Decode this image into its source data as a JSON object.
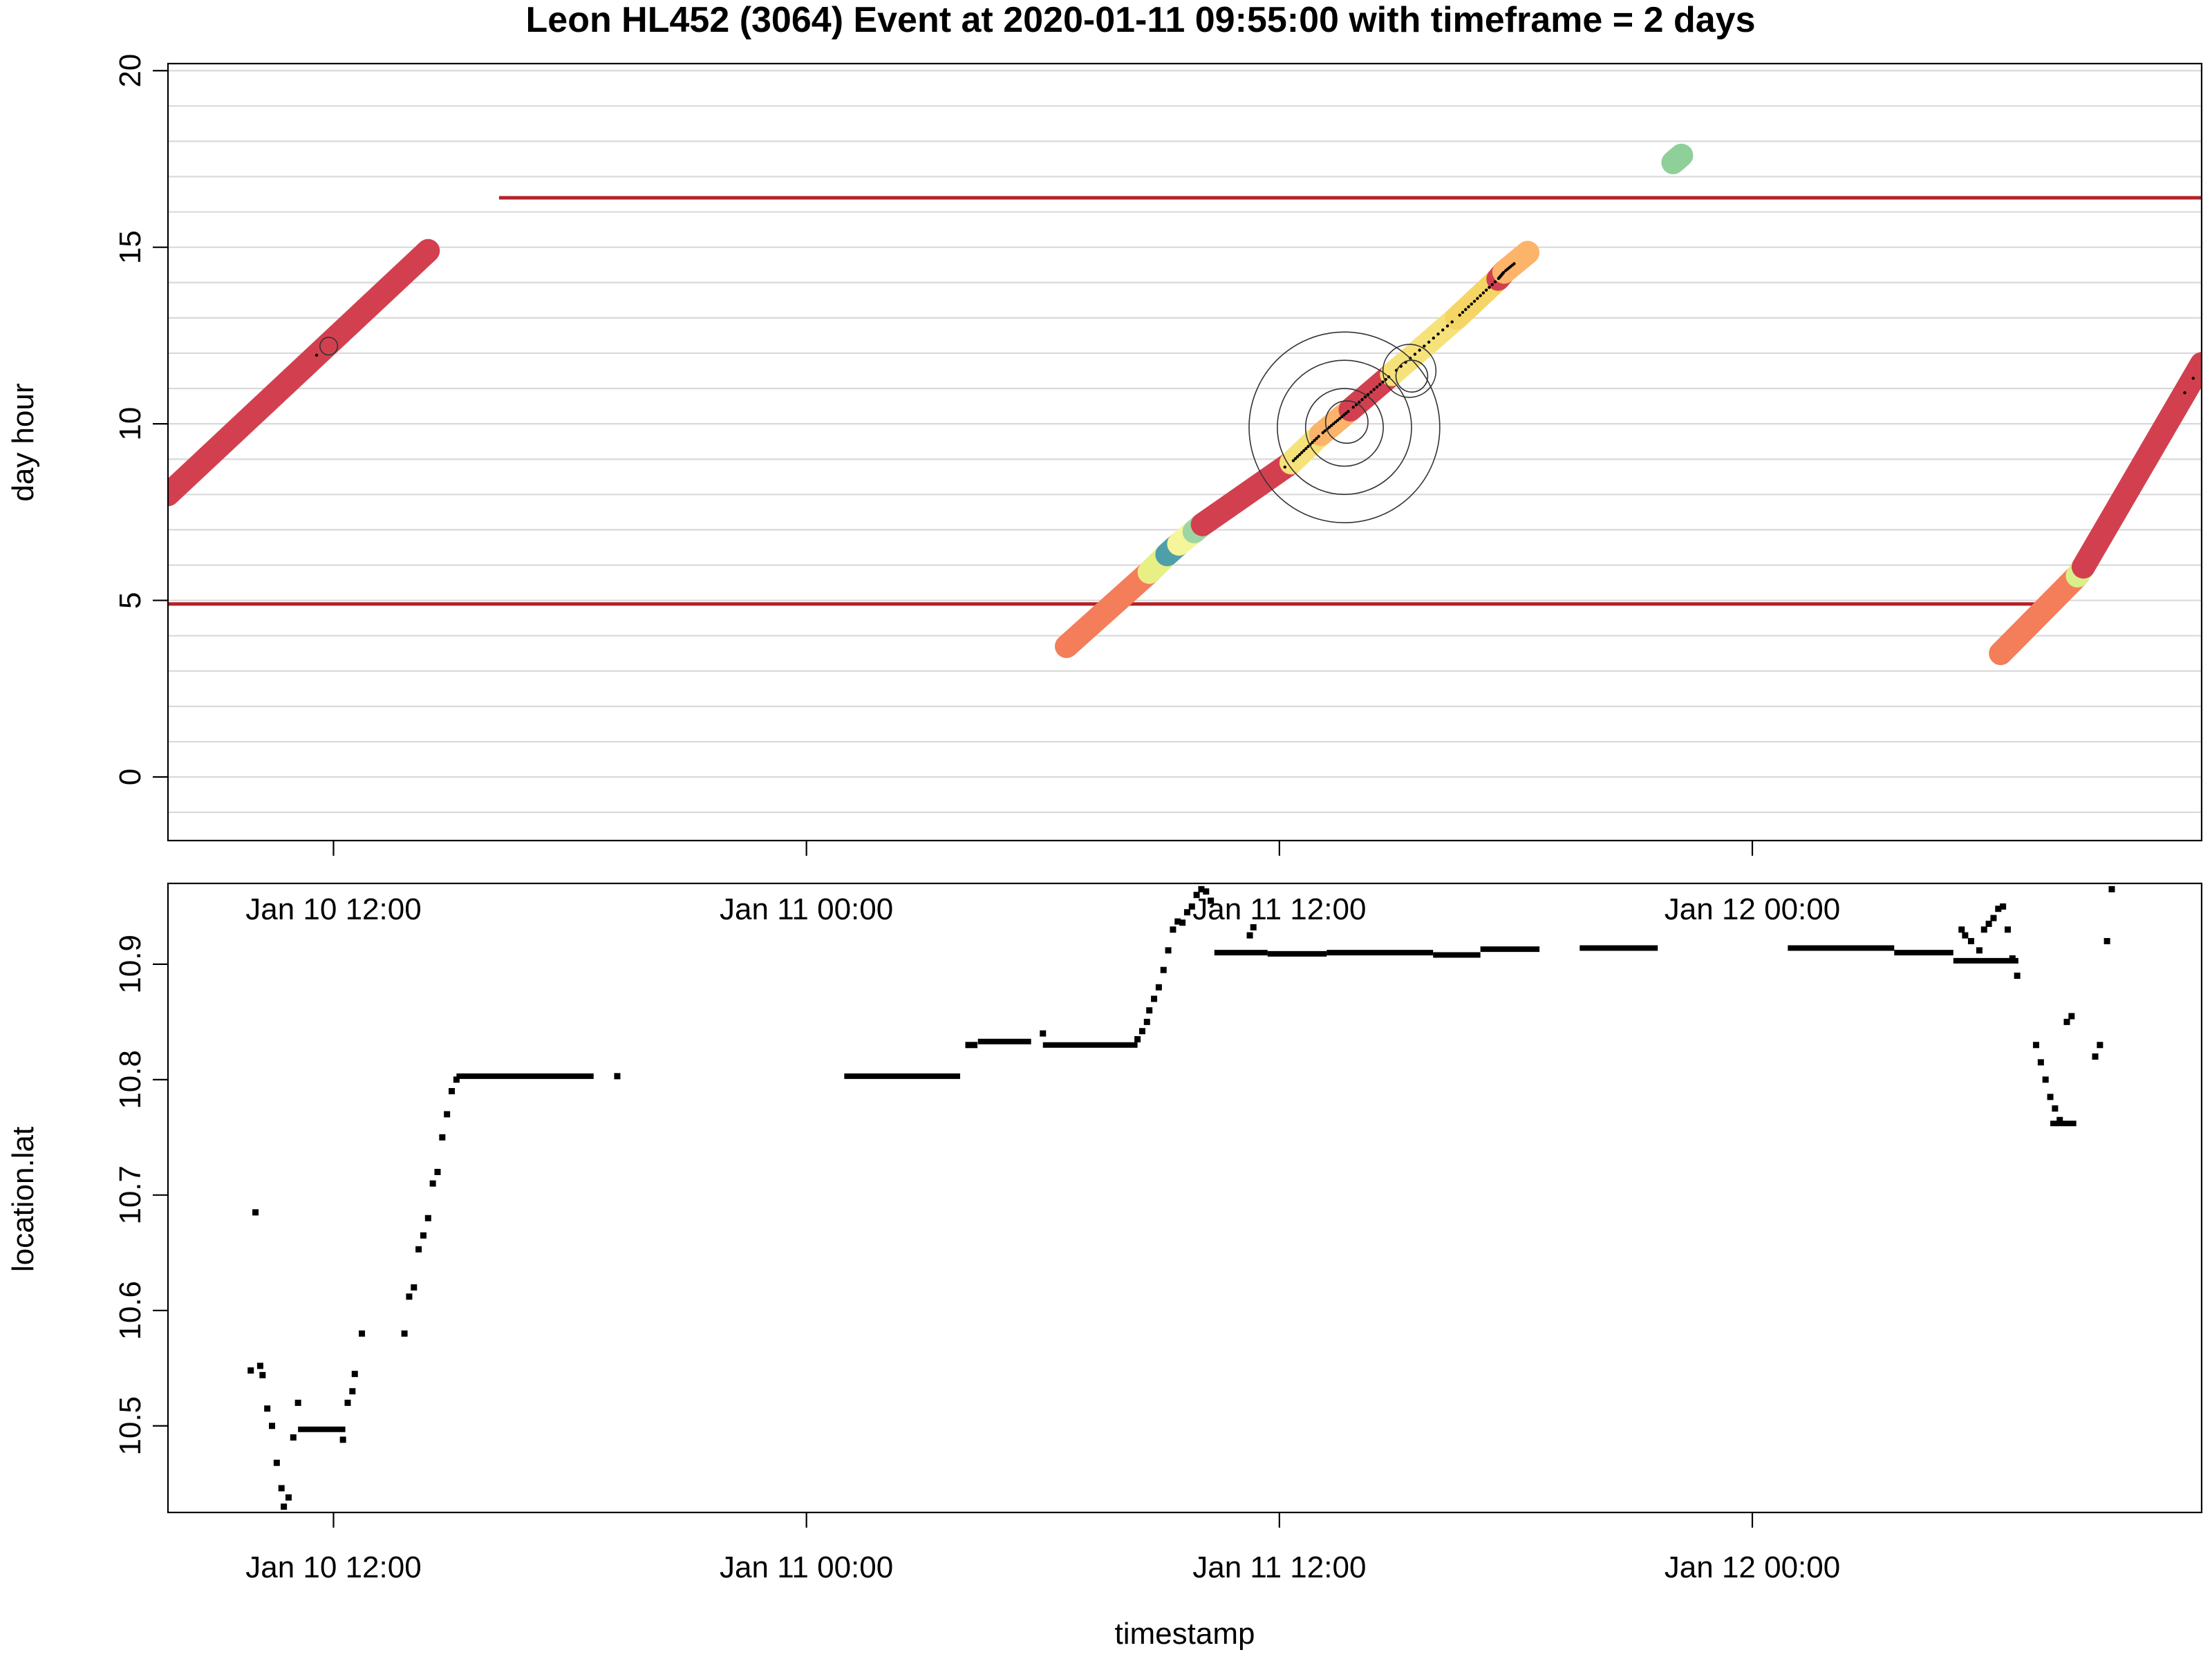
{
  "chart_data": [
    {
      "type": "scatter",
      "title": "Leon HL452 (3064)  Event at  2020-01-11 09:55:00  with timeframe =  2  days",
      "xlabel": "",
      "ylabel": "day hour",
      "xlim": [
        5.86,
        7.58
      ],
      "ylim": [
        -1.8,
        20.2
      ],
      "yticks": [
        "0",
        "5",
        "10",
        "15",
        "20"
      ],
      "ytick_values": [
        0,
        5,
        10,
        15,
        20
      ],
      "minor_grid_step": 1,
      "grid": true,
      "hlines": [
        {
          "y": 16.4,
          "x_start": 6.14,
          "x_end": 7.58,
          "color": "#b2222a"
        },
        {
          "y": 4.9,
          "x_start": 5.86,
          "x_end": 7.45,
          "color": "#b2222a"
        }
      ],
      "series": [
        {
          "color": "#d2404f",
          "x_start": 5.86,
          "y_start": 8.0,
          "x_end": 6.08,
          "y_end": 14.9
        },
        {
          "color": "#f47d5a",
          "x_start": 6.62,
          "y_start": 3.7,
          "x_end": 6.69,
          "y_end": 5.8
        },
        {
          "color": "#e7ef85",
          "x_start": 6.69,
          "y_start": 5.8,
          "x_end": 6.705,
          "y_end": 6.3
        },
        {
          "color": "#4f9fa8",
          "x_start": 6.705,
          "y_start": 6.3,
          "x_end": 6.715,
          "y_end": 6.6
        },
        {
          "color": "#f6f59b",
          "x_start": 6.715,
          "y_start": 6.6,
          "x_end": 6.728,
          "y_end": 6.95
        },
        {
          "color": "#9ed6a3",
          "x_start": 6.728,
          "y_start": 6.95,
          "x_end": 6.735,
          "y_end": 7.15
        },
        {
          "color": "#d2404f",
          "x_start": 6.735,
          "y_start": 7.15,
          "x_end": 6.81,
          "y_end": 8.9
        },
        {
          "color": "#f6e27a",
          "x_start": 6.81,
          "y_start": 8.9,
          "x_end": 6.835,
          "y_end": 9.7
        },
        {
          "color": "#fbb46a",
          "x_start": 6.835,
          "y_start": 9.7,
          "x_end": 6.86,
          "y_end": 10.4
        },
        {
          "color": "#d2404f",
          "x_start": 6.86,
          "y_start": 10.4,
          "x_end": 6.895,
          "y_end": 11.4
        },
        {
          "color": "#f6e27a",
          "x_start": 6.895,
          "y_start": 11.4,
          "x_end": 6.95,
          "y_end": 13.0
        },
        {
          "color": "#f5d565",
          "x_start": 6.95,
          "y_start": 13.0,
          "x_end": 6.985,
          "y_end": 14.1
        },
        {
          "color": "#d2404f",
          "x_start": 6.985,
          "y_start": 14.1,
          "x_end": 6.99,
          "y_end": 14.3
        },
        {
          "color": "#fbb46a",
          "x_start": 6.99,
          "y_start": 14.3,
          "x_end": 7.01,
          "y_end": 14.85
        },
        {
          "color": "#8fcf98",
          "x_start": 7.133,
          "y_start": 17.4,
          "x_end": 7.14,
          "y_end": 17.6
        },
        {
          "color": "#f47d5a",
          "x_start": 7.41,
          "y_start": 3.5,
          "x_end": 7.475,
          "y_end": 5.7
        },
        {
          "color": "#d9ef8b",
          "x_start": 7.475,
          "y_start": 5.7,
          "x_end": 7.48,
          "y_end": 5.95
        },
        {
          "color": "#d2404f",
          "x_start": 7.48,
          "y_start": 5.95,
          "x_end": 7.58,
          "y_end": 11.7
        }
      ],
      "rings": [
        {
          "x": 6.855,
          "y": 9.9,
          "r": 2.7
        },
        {
          "x": 6.855,
          "y": 9.9,
          "r": 1.9
        },
        {
          "x": 6.855,
          "y": 9.9,
          "r": 1.1
        },
        {
          "x": 6.857,
          "y": 10.05,
          "r": 0.6
        },
        {
          "x": 6.91,
          "y": 11.5,
          "r": 0.75
        },
        {
          "x": 6.912,
          "y": 11.35,
          "r": 0.45
        },
        {
          "x": 5.996,
          "y": 12.2,
          "r": 0.25
        }
      ]
    },
    {
      "type": "scatter",
      "xlabel": "timestamp",
      "ylabel": "location.lat",
      "xlim": [
        5.86,
        7.58
      ],
      "ylim": [
        10.425,
        10.97
      ],
      "yticks": [
        "10.5",
        "10.6",
        "10.7",
        "10.8",
        "10.9"
      ],
      "ytick_values": [
        10.5,
        10.6,
        10.7,
        10.8,
        10.9
      ],
      "xticks": [
        "Jan 10 12:00",
        "Jan 11 00:00",
        "Jan 11 12:00",
        "Jan 12 00:00"
      ],
      "xtick_values": [
        6.0,
        6.4,
        6.8,
        7.2
      ],
      "points": [
        [
          5.93,
          10.548
        ],
        [
          5.934,
          10.685
        ],
        [
          5.938,
          10.552
        ],
        [
          5.94,
          10.544
        ],
        [
          5.944,
          10.515
        ],
        [
          5.948,
          10.5
        ],
        [
          5.952,
          10.468
        ],
        [
          5.956,
          10.446
        ],
        [
          5.958,
          10.43
        ],
        [
          5.962,
          10.438
        ],
        [
          5.966,
          10.49
        ],
        [
          5.97,
          10.52
        ],
        [
          6.008,
          10.488
        ],
        [
          6.012,
          10.52
        ],
        [
          6.016,
          10.53
        ],
        [
          6.018,
          10.545
        ],
        [
          6.024,
          10.58
        ],
        [
          6.06,
          10.58
        ],
        [
          6.064,
          10.612
        ],
        [
          6.068,
          10.62
        ],
        [
          6.072,
          10.653
        ],
        [
          6.076,
          10.665
        ],
        [
          6.08,
          10.68
        ],
        [
          6.084,
          10.71
        ],
        [
          6.088,
          10.72
        ],
        [
          6.092,
          10.75
        ],
        [
          6.096,
          10.77
        ],
        [
          6.1,
          10.79
        ],
        [
          6.104,
          10.8
        ],
        [
          6.24,
          10.803
        ],
        [
          6.537,
          10.83
        ],
        [
          6.542,
          10.83
        ],
        [
          6.6,
          10.84
        ],
        [
          6.68,
          10.835
        ],
        [
          6.684,
          10.842
        ],
        [
          6.688,
          10.85
        ],
        [
          6.69,
          10.86
        ],
        [
          6.694,
          10.87
        ],
        [
          6.698,
          10.88
        ],
        [
          6.702,
          10.895
        ],
        [
          6.706,
          10.912
        ],
        [
          6.71,
          10.93
        ],
        [
          6.714,
          10.937
        ],
        [
          6.718,
          10.936
        ],
        [
          6.722,
          10.945
        ],
        [
          6.726,
          10.95
        ],
        [
          6.73,
          10.96
        ],
        [
          6.734,
          10.965
        ],
        [
          6.738,
          10.963
        ],
        [
          6.742,
          10.955
        ],
        [
          6.775,
          10.925
        ],
        [
          6.778,
          10.932
        ],
        [
          7.377,
          10.93
        ],
        [
          7.38,
          10.925
        ],
        [
          7.385,
          10.92
        ],
        [
          7.392,
          10.912
        ],
        [
          7.396,
          10.93
        ],
        [
          7.4,
          10.935
        ],
        [
          7.404,
          10.94
        ],
        [
          7.408,
          10.948
        ],
        [
          7.412,
          10.95
        ],
        [
          7.416,
          10.93
        ],
        [
          7.42,
          10.905
        ],
        [
          7.424,
          10.89
        ],
        [
          7.44,
          10.83
        ],
        [
          7.444,
          10.815
        ],
        [
          7.448,
          10.8
        ],
        [
          7.452,
          10.785
        ],
        [
          7.456,
          10.775
        ],
        [
          7.46,
          10.765
        ],
        [
          7.466,
          10.85
        ],
        [
          7.47,
          10.855
        ],
        [
          7.49,
          10.82
        ],
        [
          7.494,
          10.83
        ],
        [
          7.5,
          10.92
        ],
        [
          7.504,
          10.965
        ]
      ],
      "runs": [
        {
          "x_start": 5.97,
          "x_end": 6.01,
          "y": 10.497
        },
        {
          "x_start": 6.104,
          "x_end": 6.22,
          "y": 10.803
        },
        {
          "x_start": 6.432,
          "x_end": 6.53,
          "y": 10.803
        },
        {
          "x_start": 6.545,
          "x_end": 6.59,
          "y": 10.833
        },
        {
          "x_start": 6.6,
          "x_end": 6.68,
          "y": 10.83
        },
        {
          "x_start": 6.745,
          "x_end": 6.79,
          "y": 10.91
        },
        {
          "x_start": 6.79,
          "x_end": 6.84,
          "y": 10.909
        },
        {
          "x_start": 6.84,
          "x_end": 6.93,
          "y": 10.91
        },
        {
          "x_start": 6.93,
          "x_end": 6.97,
          "y": 10.908
        },
        {
          "x_start": 6.97,
          "x_end": 7.02,
          "y": 10.913
        },
        {
          "x_start": 7.054,
          "x_end": 7.12,
          "y": 10.914
        },
        {
          "x_start": 7.23,
          "x_end": 7.32,
          "y": 10.914
        },
        {
          "x_start": 7.32,
          "x_end": 7.37,
          "y": 10.91
        },
        {
          "x_start": 7.37,
          "x_end": 7.425,
          "y": 10.903
        },
        {
          "x_start": 7.452,
          "x_end": 7.474,
          "y": 10.762
        }
      ]
    }
  ],
  "colors": {
    "reference_line": "#b2222a",
    "grid": "#d9d9d9",
    "points": "#000000"
  }
}
